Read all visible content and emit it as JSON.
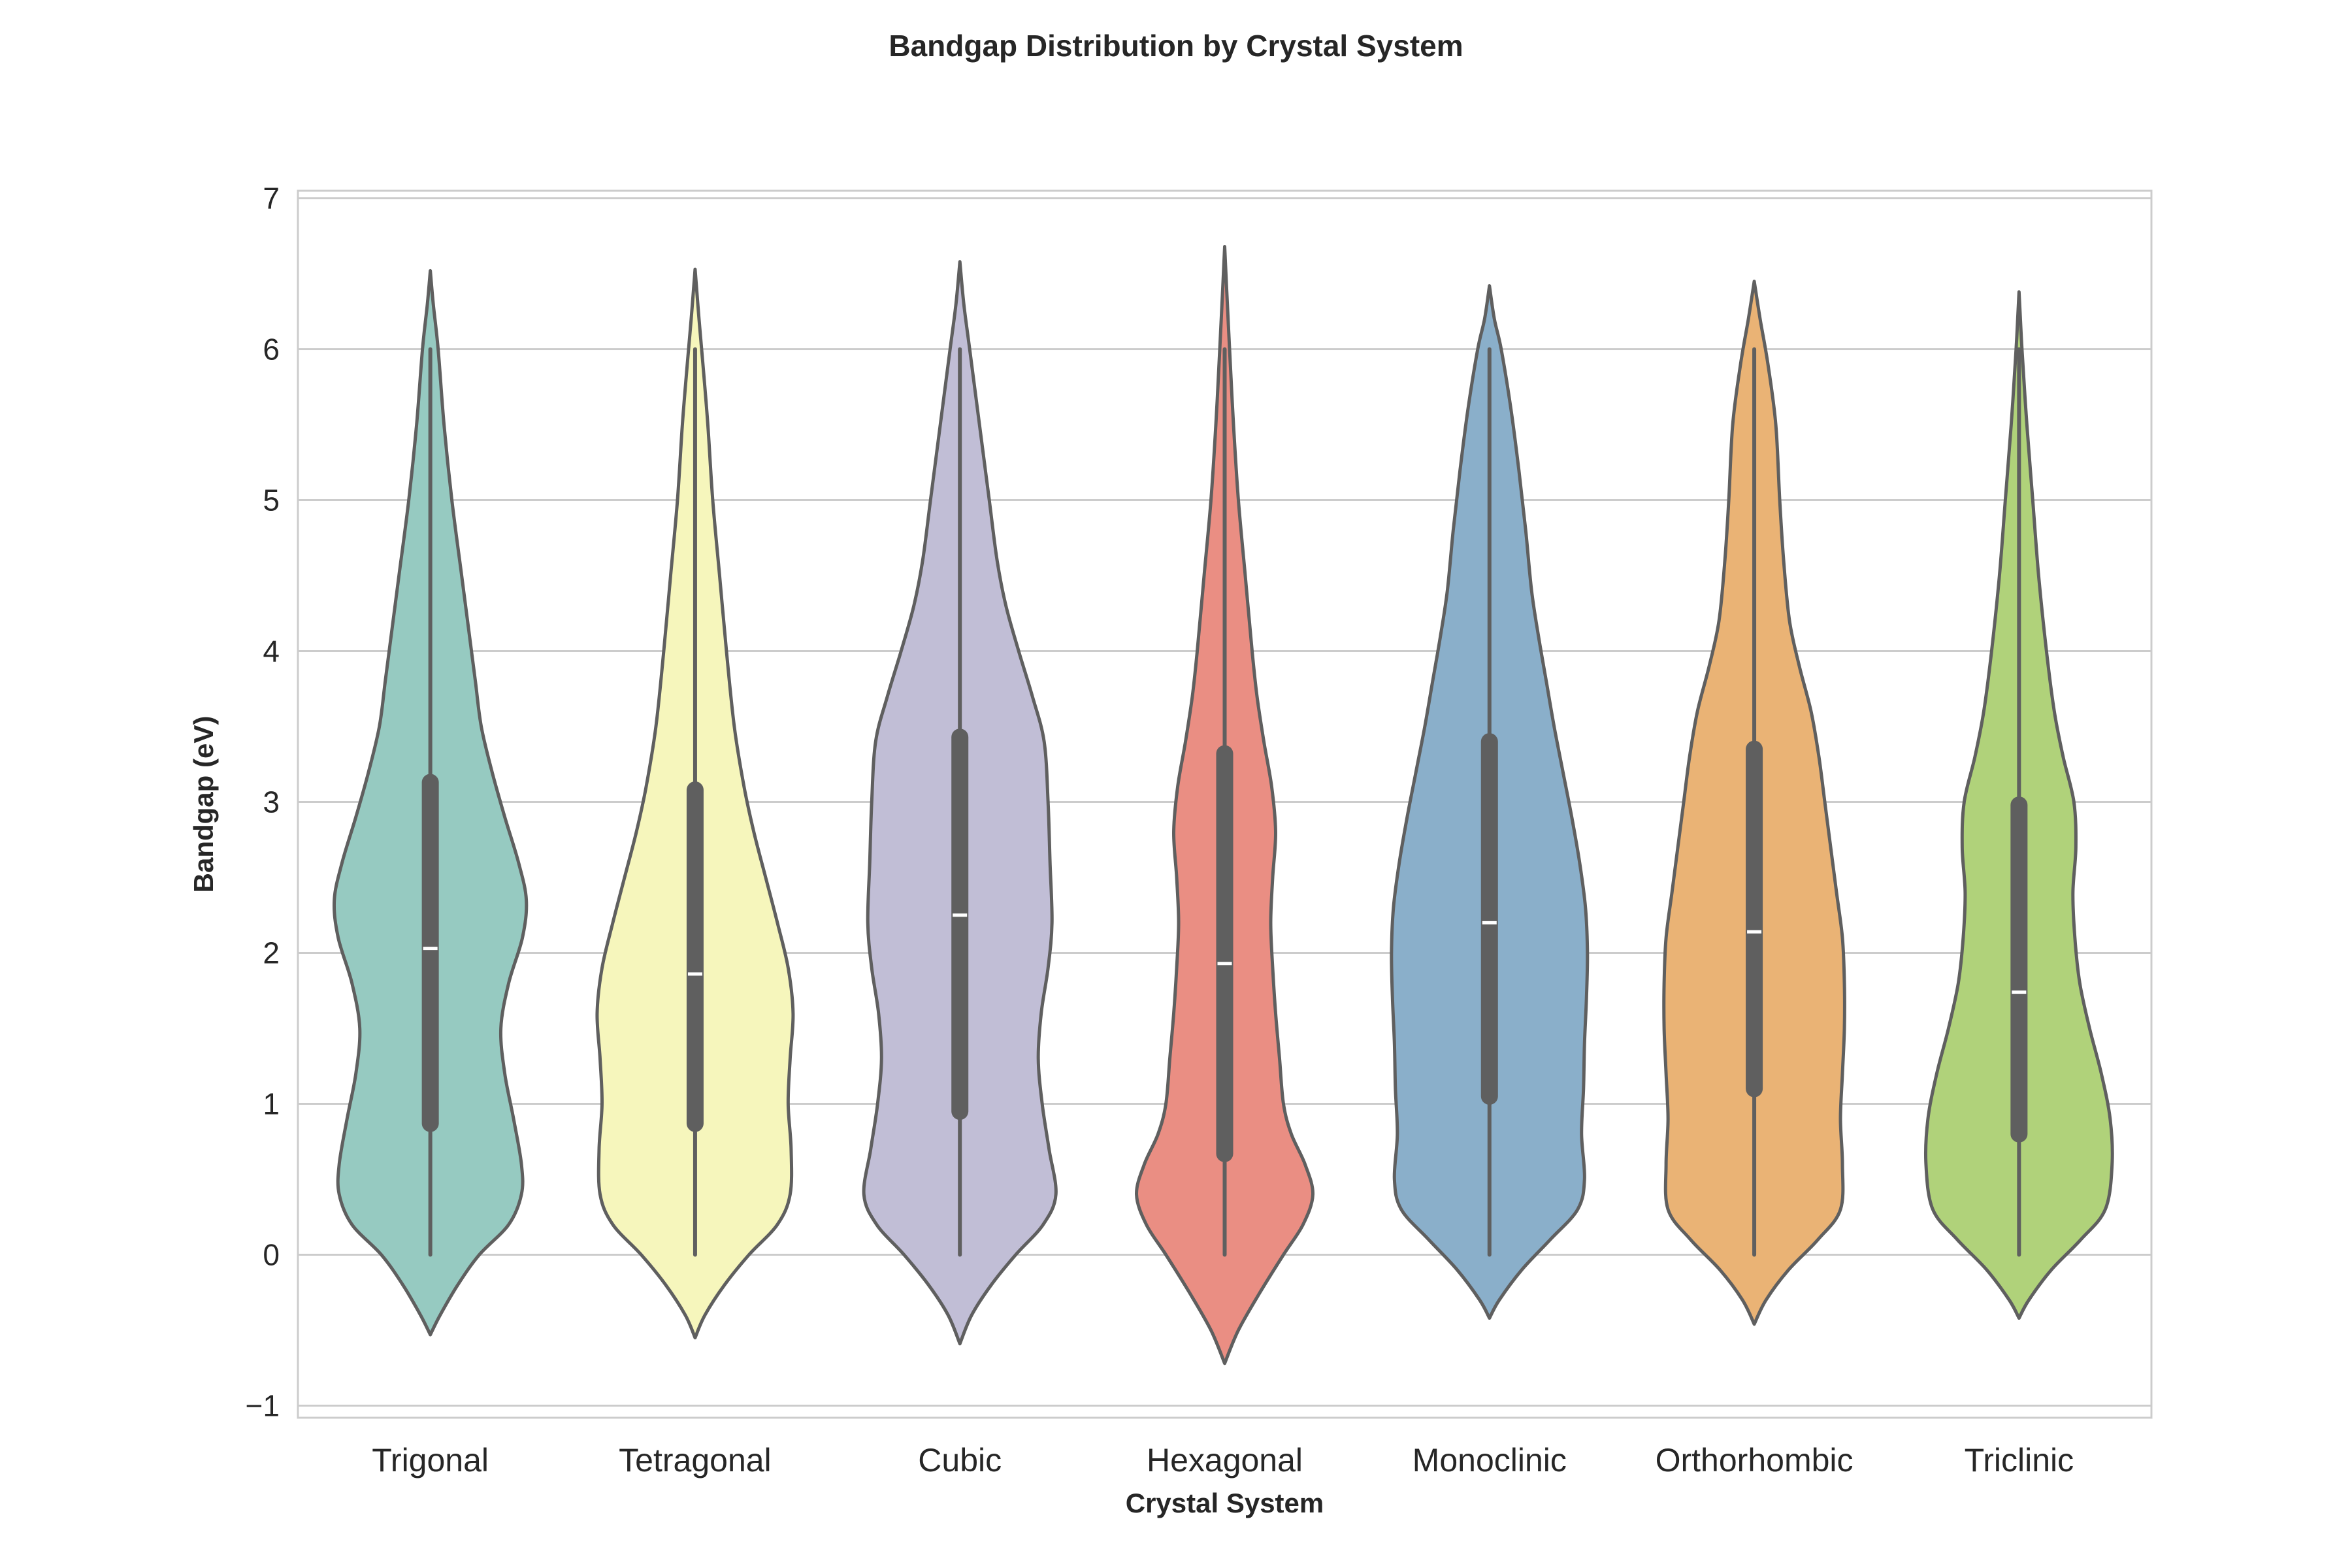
{
  "chart_data": {
    "type": "violin",
    "title": "Bandgap Distribution by Crystal System",
    "xlabel": "Crystal System",
    "ylabel": "Bandgap (eV)",
    "ylim": [
      -1.08,
      7.05
    ],
    "yticks": [
      -1,
      0,
      1,
      2,
      3,
      4,
      5,
      6,
      7
    ],
    "ytick_labels": [
      "−1",
      "0",
      "1",
      "2",
      "3",
      "4",
      "5",
      "6",
      "7"
    ],
    "grid": "horizontal",
    "categories": [
      "Trigonal",
      "Tetragonal",
      "Cubic",
      "Hexagonal",
      "Monoclinic",
      "Orthorhombic",
      "Triclinic"
    ],
    "colors": [
      "#96cac1",
      "#f6f6bc",
      "#c1bed6",
      "#ea8e83",
      "#8aafca",
      "#eab375",
      "#b0d27a"
    ],
    "edge_color": "#5f5f5f",
    "box_color": "#5f5f5f",
    "median_color": "#ffffff",
    "series": [
      {
        "category": "Trigonal",
        "min": 0.0,
        "q1": 0.87,
        "median": 2.03,
        "q3": 3.13,
        "max": 6.0,
        "violin_low": -0.53,
        "violin_high": 6.52,
        "profile": [
          [
            -0.53,
            0.0
          ],
          [
            -0.4,
            0.1
          ],
          [
            -0.2,
            0.28
          ],
          [
            0.0,
            0.5
          ],
          [
            0.2,
            0.8
          ],
          [
            0.4,
            0.93
          ],
          [
            0.6,
            0.93
          ],
          [
            0.9,
            0.85
          ],
          [
            1.2,
            0.76
          ],
          [
            1.5,
            0.72
          ],
          [
            1.8,
            0.8
          ],
          [
            2.1,
            0.94
          ],
          [
            2.35,
            0.98
          ],
          [
            2.6,
            0.9
          ],
          [
            2.9,
            0.76
          ],
          [
            3.2,
            0.63
          ],
          [
            3.5,
            0.52
          ],
          [
            3.8,
            0.46
          ],
          [
            4.1,
            0.4
          ],
          [
            4.5,
            0.32
          ],
          [
            5.0,
            0.22
          ],
          [
            5.5,
            0.14
          ],
          [
            6.0,
            0.08
          ],
          [
            6.3,
            0.03
          ],
          [
            6.52,
            0.0
          ]
        ]
      },
      {
        "category": "Tetragonal",
        "min": 0.0,
        "q1": 0.87,
        "median": 1.86,
        "q3": 3.08,
        "max": 6.0,
        "violin_low": -0.55,
        "violin_high": 6.53,
        "profile": [
          [
            -0.55,
            0.0
          ],
          [
            -0.4,
            0.1
          ],
          [
            -0.2,
            0.3
          ],
          [
            0.0,
            0.55
          ],
          [
            0.2,
            0.84
          ],
          [
            0.4,
            0.97
          ],
          [
            0.7,
            0.98
          ],
          [
            1.0,
            0.95
          ],
          [
            1.3,
            0.97
          ],
          [
            1.6,
            1.0
          ],
          [
            1.9,
            0.95
          ],
          [
            2.2,
            0.84
          ],
          [
            2.5,
            0.72
          ],
          [
            2.8,
            0.6
          ],
          [
            3.1,
            0.5
          ],
          [
            3.5,
            0.4
          ],
          [
            4.0,
            0.32
          ],
          [
            4.5,
            0.25
          ],
          [
            5.0,
            0.18
          ],
          [
            5.5,
            0.13
          ],
          [
            5.9,
            0.08
          ],
          [
            6.2,
            0.04
          ],
          [
            6.53,
            0.0
          ]
        ]
      },
      {
        "category": "Cubic",
        "min": 0.0,
        "q1": 0.95,
        "median": 2.25,
        "q3": 3.43,
        "max": 6.0,
        "violin_low": -0.59,
        "violin_high": 6.58,
        "profile": [
          [
            -0.59,
            0.0
          ],
          [
            -0.4,
            0.12
          ],
          [
            -0.2,
            0.32
          ],
          [
            0.0,
            0.57
          ],
          [
            0.2,
            0.85
          ],
          [
            0.4,
            0.98
          ],
          [
            0.7,
            0.91
          ],
          [
            1.0,
            0.84
          ],
          [
            1.3,
            0.8
          ],
          [
            1.6,
            0.83
          ],
          [
            1.9,
            0.9
          ],
          [
            2.2,
            0.94
          ],
          [
            2.6,
            0.92
          ],
          [
            3.0,
            0.9
          ],
          [
            3.4,
            0.86
          ],
          [
            3.7,
            0.74
          ],
          [
            4.0,
            0.6
          ],
          [
            4.3,
            0.47
          ],
          [
            4.6,
            0.38
          ],
          [
            5.0,
            0.3
          ],
          [
            5.5,
            0.2
          ],
          [
            6.0,
            0.1
          ],
          [
            6.3,
            0.04
          ],
          [
            6.58,
            0.0
          ]
        ]
      },
      {
        "category": "Hexagonal",
        "min": 0.0,
        "q1": 0.67,
        "median": 1.93,
        "q3": 3.32,
        "max": 6.0,
        "violin_low": -0.72,
        "violin_high": 6.68,
        "profile": [
          [
            -0.72,
            0.0
          ],
          [
            -0.5,
            0.14
          ],
          [
            -0.25,
            0.36
          ],
          [
            0.0,
            0.6
          ],
          [
            0.2,
            0.8
          ],
          [
            0.4,
            0.9
          ],
          [
            0.6,
            0.82
          ],
          [
            0.8,
            0.68
          ],
          [
            1.0,
            0.6
          ],
          [
            1.3,
            0.56
          ],
          [
            1.6,
            0.52
          ],
          [
            1.9,
            0.49
          ],
          [
            2.2,
            0.47
          ],
          [
            2.5,
            0.49
          ],
          [
            2.8,
            0.52
          ],
          [
            3.1,
            0.48
          ],
          [
            3.4,
            0.4
          ],
          [
            3.7,
            0.33
          ],
          [
            4.0,
            0.28
          ],
          [
            4.5,
            0.21
          ],
          [
            5.0,
            0.14
          ],
          [
            5.5,
            0.09
          ],
          [
            6.0,
            0.05
          ],
          [
            6.4,
            0.02
          ],
          [
            6.68,
            0.0
          ]
        ]
      },
      {
        "category": "Monoclinic",
        "min": 0.0,
        "q1": 1.05,
        "median": 2.2,
        "q3": 3.4,
        "max": 6.0,
        "violin_low": -0.42,
        "violin_high": 6.42,
        "profile": [
          [
            -0.42,
            0.0
          ],
          [
            -0.3,
            0.1
          ],
          [
            -0.1,
            0.33
          ],
          [
            0.1,
            0.62
          ],
          [
            0.3,
            0.9
          ],
          [
            0.5,
            0.97
          ],
          [
            0.8,
            0.94
          ],
          [
            1.1,
            0.96
          ],
          [
            1.4,
            0.97
          ],
          [
            1.7,
            0.99
          ],
          [
            2.0,
            1.0
          ],
          [
            2.3,
            0.98
          ],
          [
            2.6,
            0.92
          ],
          [
            2.9,
            0.84
          ],
          [
            3.2,
            0.75
          ],
          [
            3.5,
            0.66
          ],
          [
            3.8,
            0.58
          ],
          [
            4.1,
            0.5
          ],
          [
            4.4,
            0.43
          ],
          [
            4.8,
            0.37
          ],
          [
            5.2,
            0.3
          ],
          [
            5.6,
            0.22
          ],
          [
            6.0,
            0.12
          ],
          [
            6.2,
            0.05
          ],
          [
            6.42,
            0.0
          ]
        ]
      },
      {
        "category": "Orthorhombic",
        "min": 0.0,
        "q1": 1.1,
        "median": 2.14,
        "q3": 3.35,
        "max": 6.0,
        "violin_low": -0.46,
        "violin_high": 6.45,
        "profile": [
          [
            -0.46,
            0.0
          ],
          [
            -0.3,
            0.12
          ],
          [
            -0.1,
            0.35
          ],
          [
            0.1,
            0.65
          ],
          [
            0.3,
            0.88
          ],
          [
            0.6,
            0.9
          ],
          [
            0.9,
            0.88
          ],
          [
            1.2,
            0.9
          ],
          [
            1.5,
            0.92
          ],
          [
            1.8,
            0.92
          ],
          [
            2.1,
            0.9
          ],
          [
            2.4,
            0.84
          ],
          [
            2.7,
            0.78
          ],
          [
            3.0,
            0.72
          ],
          [
            3.3,
            0.66
          ],
          [
            3.6,
            0.58
          ],
          [
            3.9,
            0.46
          ],
          [
            4.2,
            0.36
          ],
          [
            4.6,
            0.3
          ],
          [
            5.0,
            0.26
          ],
          [
            5.5,
            0.22
          ],
          [
            5.9,
            0.14
          ],
          [
            6.2,
            0.06
          ],
          [
            6.45,
            0.0
          ]
        ]
      },
      {
        "category": "Triclinic",
        "min": 0.0,
        "q1": 0.8,
        "median": 1.74,
        "q3": 2.98,
        "max": 6.0,
        "violin_low": -0.42,
        "violin_high": 6.38,
        "profile": [
          [
            -0.42,
            0.0
          ],
          [
            -0.3,
            0.1
          ],
          [
            -0.1,
            0.33
          ],
          [
            0.1,
            0.63
          ],
          [
            0.3,
            0.88
          ],
          [
            0.6,
            0.95
          ],
          [
            0.9,
            0.93
          ],
          [
            1.2,
            0.84
          ],
          [
            1.5,
            0.72
          ],
          [
            1.8,
            0.62
          ],
          [
            2.1,
            0.57
          ],
          [
            2.4,
            0.55
          ],
          [
            2.7,
            0.58
          ],
          [
            3.0,
            0.56
          ],
          [
            3.3,
            0.45
          ],
          [
            3.6,
            0.36
          ],
          [
            4.0,
            0.28
          ],
          [
            4.5,
            0.2
          ],
          [
            5.0,
            0.14
          ],
          [
            5.5,
            0.08
          ],
          [
            6.0,
            0.03
          ],
          [
            6.38,
            0.0
          ]
        ]
      }
    ]
  }
}
